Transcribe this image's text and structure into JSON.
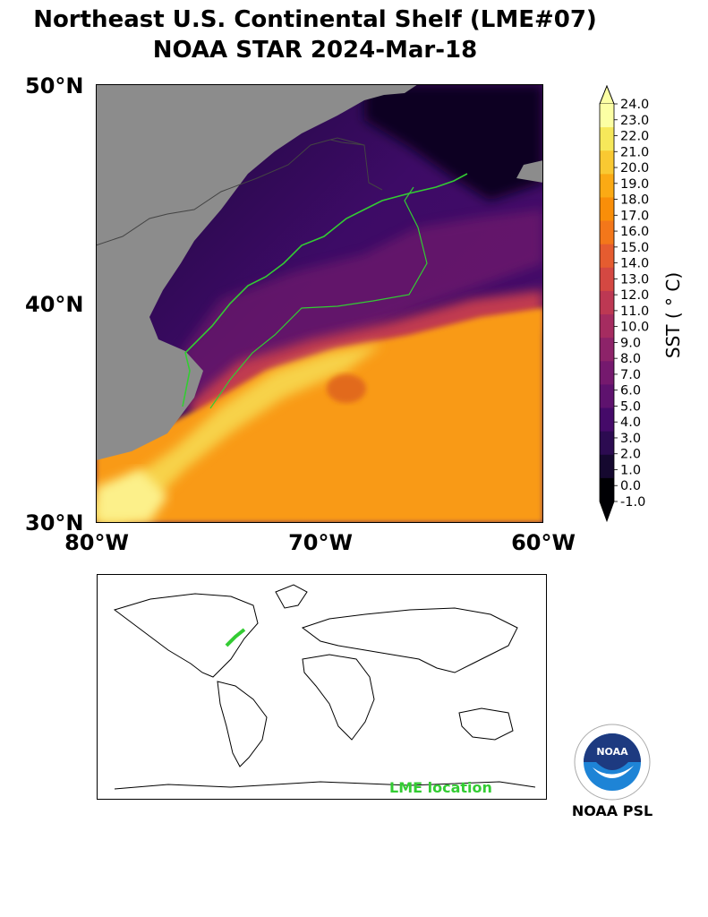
{
  "title": {
    "line1": "Northeast U.S. Continental Shelf (LME#07)",
    "line2": "NOAA STAR 2024-Mar-18"
  },
  "axes": {
    "lat_labels": [
      "50°N",
      "40°N",
      "30°N"
    ],
    "lon_labels": [
      "80°W",
      "70°W",
      "60°W"
    ]
  },
  "colorbar": {
    "label": "SST ( ° C)",
    "ticks": [
      "24.0",
      "23.0",
      "22.0",
      "21.0",
      "20.0",
      "19.0",
      "18.0",
      "17.0",
      "16.0",
      "15.0",
      "14.0",
      "13.0",
      "12.0",
      "11.0",
      "10.0",
      "9.0",
      "8.0",
      "7.0",
      "6.0",
      "5.0",
      "4.0",
      "3.0",
      "2.0",
      "1.0",
      "0.0",
      "-1.0"
    ],
    "colors": [
      "#fcffa4",
      "#f6e85a",
      "#f9c932",
      "#fbaa14",
      "#f98e09",
      "#f3771a",
      "#e55c30",
      "#d44842",
      "#bd3853",
      "#a52c60",
      "#8d2369",
      "#75196e",
      "#5e126e",
      "#450a69",
      "#2c0b51",
      "#15082f",
      "#000004"
    ]
  },
  "inset": {
    "label": "LME location",
    "highlight_color": "#33cc33"
  },
  "logo": {
    "caption": "NOAA PSL",
    "badge": "NOAA"
  },
  "colors": {
    "land": "#8c8c8c",
    "coast_highlight": "#33cc33",
    "warm": "#f99a12",
    "cold": "#2b0a5a"
  }
}
